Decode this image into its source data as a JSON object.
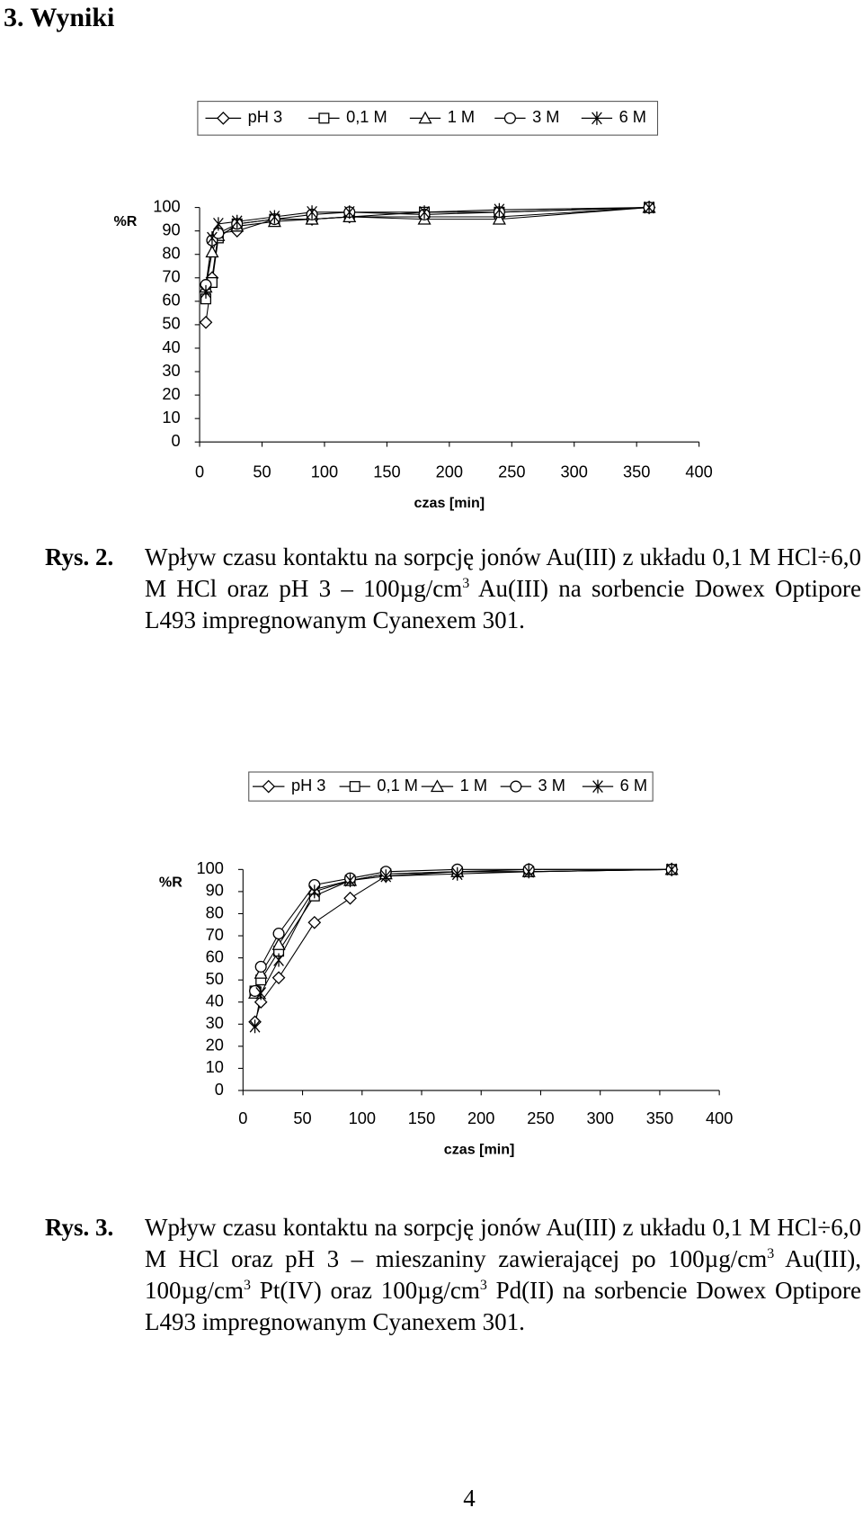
{
  "heading": "3. Wyniki",
  "chart_data": [
    {
      "type": "line",
      "ylabel": "%R",
      "xlabel": "czas [min]",
      "legend": "top",
      "xlim": [
        0,
        400
      ],
      "xticks": [
        0,
        50,
        100,
        150,
        200,
        250,
        300,
        350,
        400
      ],
      "ylim": [
        0,
        100
      ],
      "yticks": [
        0,
        10,
        20,
        30,
        40,
        50,
        60,
        70,
        80,
        90,
        100
      ],
      "x": [
        5,
        10,
        15,
        30,
        60,
        90,
        120,
        180,
        240,
        360
      ],
      "series": [
        {
          "name": "pH 3",
          "color": "#000000",
          "marker": "diamond",
          "values": [
            51,
            70,
            89,
            90,
            95,
            95,
            96,
            96,
            96,
            100
          ]
        },
        {
          "name": "0,1 M",
          "color": "#000000",
          "marker": "square",
          "values": [
            61,
            68,
            87,
            93,
            95,
            95,
            96,
            98,
            98,
            100
          ]
        },
        {
          "name": "1 M",
          "color": "#000000",
          "marker": "triangle",
          "values": [
            66,
            81,
            88,
            92,
            94,
            95,
            96,
            95,
            95,
            100
          ]
        },
        {
          "name": "3 M",
          "color": "#000000",
          "marker": "circle",
          "values": [
            67,
            86,
            89,
            93,
            95,
            97,
            98,
            97,
            98,
            100
          ]
        },
        {
          "name": "6 M",
          "color": "#000000",
          "marker": "star",
          "values": [
            64,
            87,
            93,
            94,
            96,
            98,
            98,
            98,
            99,
            100
          ]
        }
      ]
    },
    {
      "type": "line",
      "ylabel": "%R",
      "xlabel": "czas [min]",
      "legend": "top",
      "xlim": [
        0,
        400
      ],
      "xticks": [
        0,
        50,
        100,
        150,
        200,
        250,
        300,
        350,
        400
      ],
      "ylim": [
        0,
        100
      ],
      "yticks": [
        0,
        10,
        20,
        30,
        40,
        50,
        60,
        70,
        80,
        90,
        100
      ],
      "x": [
        10,
        15,
        30,
        60,
        90,
        120,
        180,
        240,
        360
      ],
      "series": [
        {
          "name": "pH 3",
          "color": "#000000",
          "marker": "diamond",
          "values": [
            31,
            40,
            51,
            76,
            87,
            97,
            99,
            100,
            100
          ]
        },
        {
          "name": "0,1 M",
          "color": "#000000",
          "marker": "square",
          "values": [
            45,
            50,
            63,
            88,
            95,
            98,
            99,
            99,
            100
          ]
        },
        {
          "name": "1 M",
          "color": "#000000",
          "marker": "triangle",
          "values": [
            44,
            53,
            66,
            91,
            95,
            98,
            99,
            99,
            100
          ]
        },
        {
          "name": "3 M",
          "color": "#000000",
          "marker": "circle",
          "values": [
            45,
            56,
            71,
            93,
            96,
            99,
            100,
            100,
            100
          ]
        },
        {
          "name": "6 M",
          "color": "#000000",
          "marker": "star",
          "values": [
            29,
            44,
            59,
            90,
            95,
            97,
            98,
            99,
            100
          ]
        }
      ]
    }
  ],
  "captions": [
    {
      "label": "Rys. 2.",
      "segments": [
        {
          "text": "Wpływ czasu kontaktu na sorpcję jonów Au(III) z układu 0,1 M HCl÷6,0 M HCl oraz pH 3 – 100µg/cm"
        },
        {
          "sup": "3"
        },
        {
          "text": " Au(III) na sorbencie Dowex Optipore L493 impregnowanym Cyanexem 301."
        }
      ]
    },
    {
      "label": "Rys. 3.",
      "segments": [
        {
          "text": "Wpływ czasu kontaktu na sorpcję jonów Au(III) z układu 0,1 M HCl÷6,0 M HCl oraz pH 3 – mieszaniny zawierającej po 100µg/cm"
        },
        {
          "sup": "3"
        },
        {
          "text": " Au(III), 100µg/cm"
        },
        {
          "sup": "3"
        },
        {
          "text": " Pt(IV) oraz 100µg/cm"
        },
        {
          "sup": "3"
        },
        {
          "text": " Pd(II) na sorbencie Dowex Optipore L493 impregnowanym Cyanexem 301."
        }
      ]
    }
  ],
  "page_number": "4"
}
